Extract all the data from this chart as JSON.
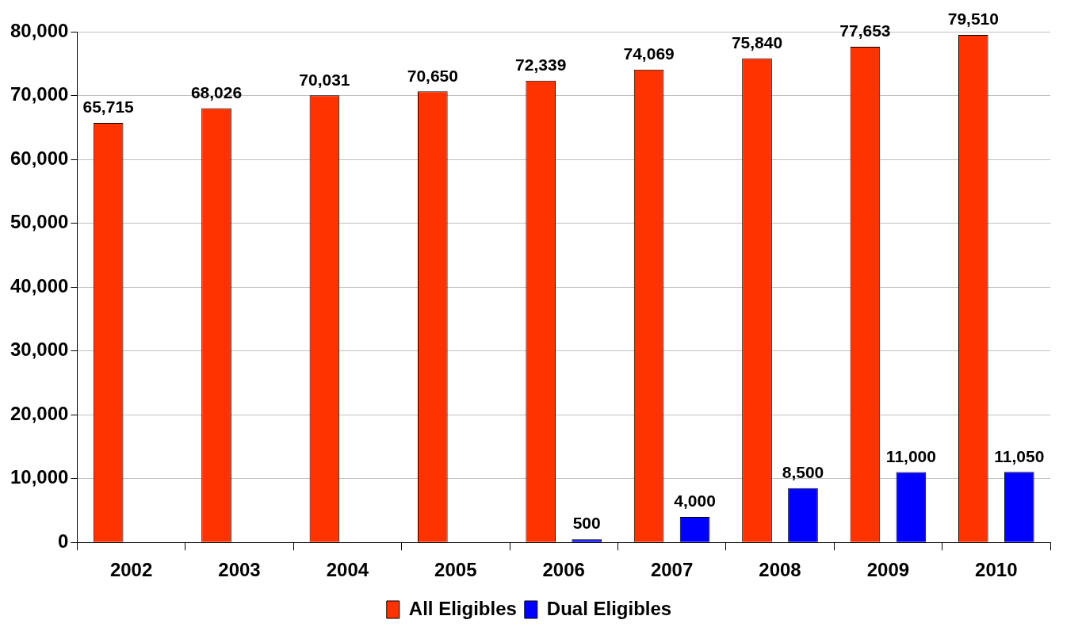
{
  "chart_data": {
    "type": "bar",
    "categories": [
      "2002",
      "2003",
      "2004",
      "2005",
      "2006",
      "2007",
      "2008",
      "2009",
      "2010"
    ],
    "series": [
      {
        "name": "All Eligibles",
        "color": "#ff3300",
        "values": [
          65715,
          68026,
          70031,
          70650,
          72339,
          74069,
          75840,
          77653,
          79510
        ],
        "value_labels": [
          "65,715",
          "68,026",
          "70,031",
          "70,650",
          "72,339",
          "74,069",
          "75,840",
          "77,653",
          "79,510"
        ]
      },
      {
        "name": "Dual Eligibles",
        "color": "#0000ff",
        "values": [
          null,
          null,
          null,
          null,
          500,
          4000,
          8500,
          11000,
          11050
        ],
        "value_labels": [
          null,
          null,
          null,
          null,
          "500",
          "4,000",
          "8,500",
          "11,000",
          "11,050"
        ]
      }
    ],
    "ylim": [
      0,
      80000
    ],
    "yticks": [
      0,
      {
        "value": 10000,
        "label": "10,000"
      },
      {
        "value": 20000,
        "label": "20,000"
      },
      {
        "value": 30000,
        "label": "30,000"
      },
      {
        "value": 40000,
        "label": "40,000"
      },
      {
        "value": 50000,
        "label": "50,000"
      },
      {
        "value": 60000,
        "label": "60,000"
      },
      {
        "value": 70000,
        "label": "70,000"
      },
      {
        "value": 80000,
        "label": "80,000"
      }
    ],
    "grid": "y",
    "legend": "bottom"
  }
}
